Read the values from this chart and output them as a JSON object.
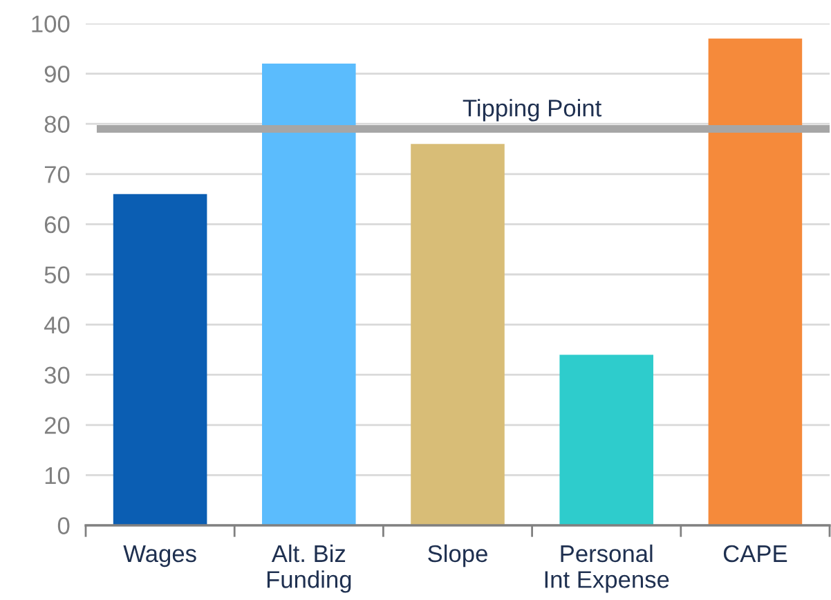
{
  "chart_data": {
    "type": "bar",
    "categories": [
      "Wages",
      "Alt. Biz\nFunding",
      "Slope",
      "Personal\nInt Expense",
      "CAPE"
    ],
    "values": [
      66,
      92,
      76,
      34,
      97
    ],
    "colors": [
      "#0b5eb3",
      "#5bbcfd",
      "#d8bd77",
      "#2ecccc",
      "#f58a3b"
    ],
    "ylim": [
      0,
      100
    ],
    "yticks": [
      0,
      10,
      20,
      30,
      40,
      50,
      60,
      70,
      80,
      90,
      100
    ],
    "grid": "y",
    "legend": false,
    "ref_lines": [
      {
        "axis": "y",
        "value": 79,
        "label": "Tipping Point",
        "color": "#a6a6a6",
        "line_style": "solid"
      }
    ]
  }
}
